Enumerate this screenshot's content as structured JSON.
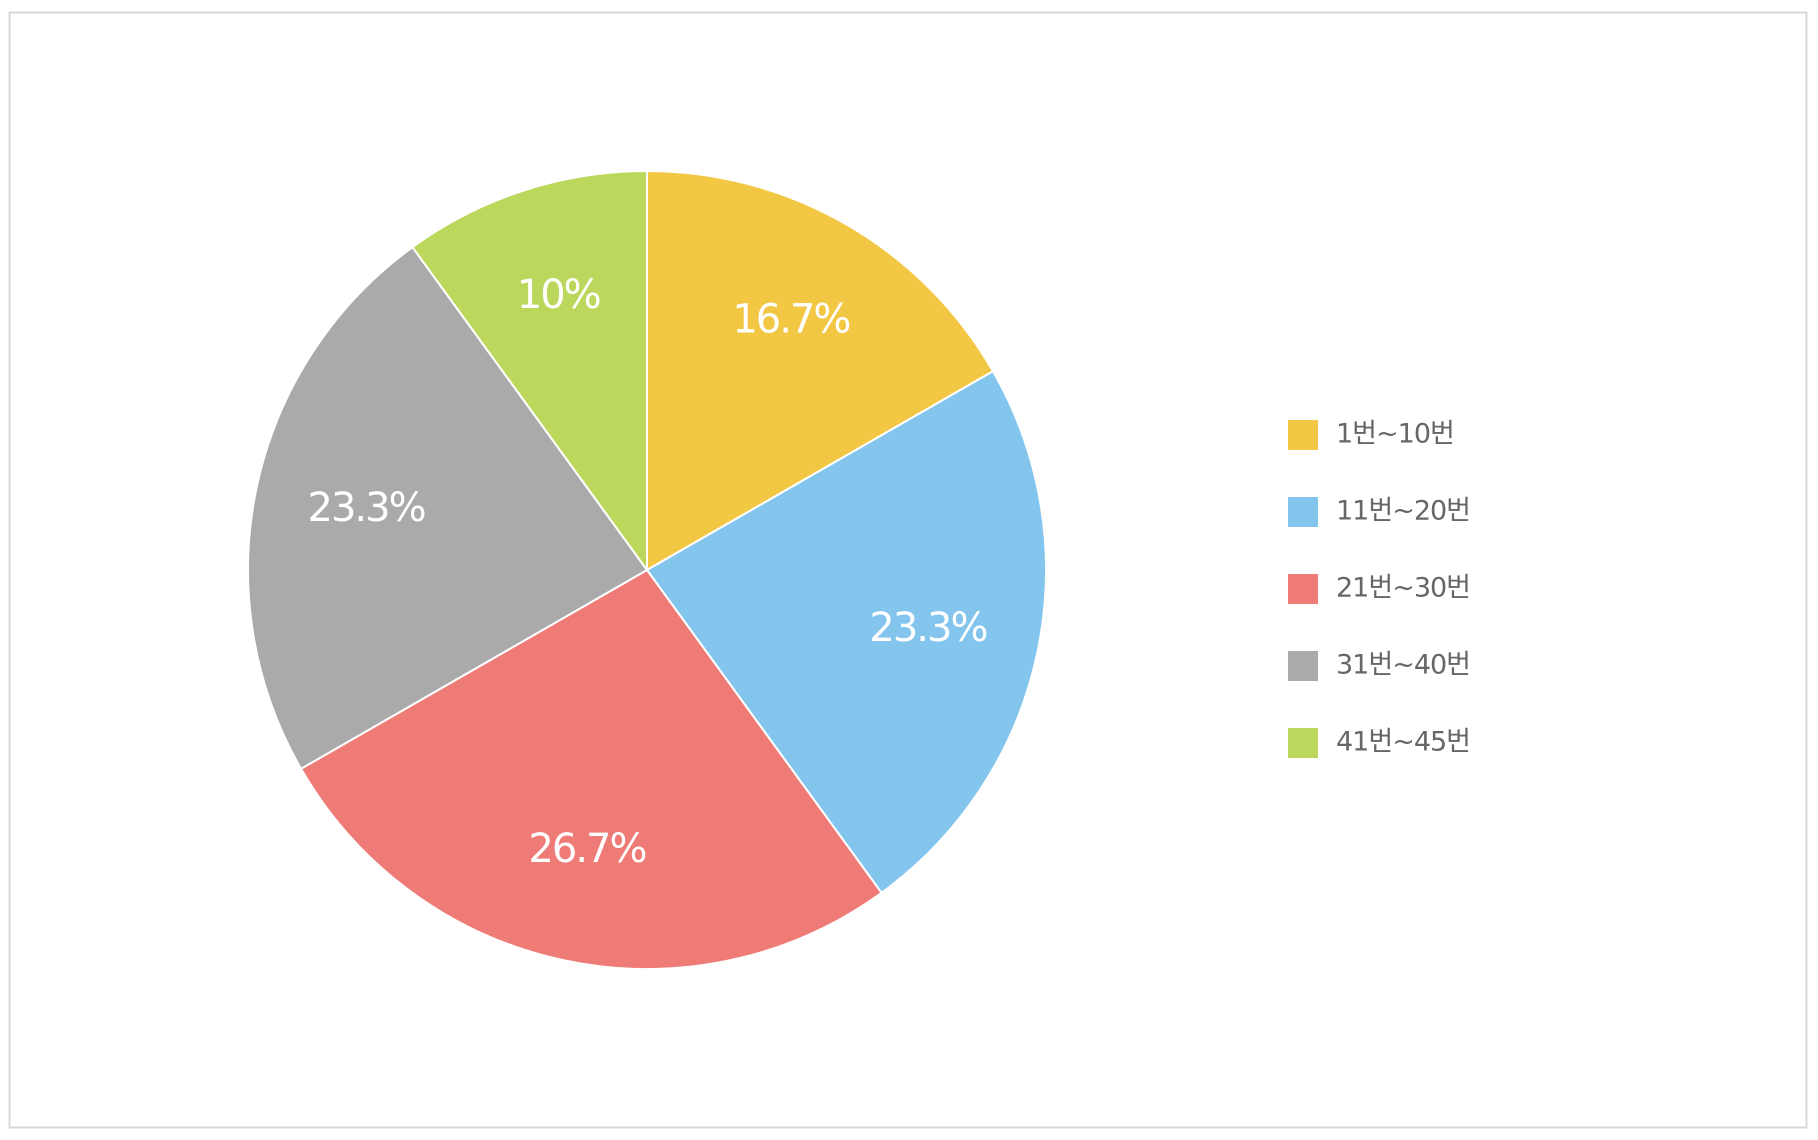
{
  "chart_data": {
    "type": "pie",
    "categories": [
      "1번~10번",
      "11번~20번",
      "21번~30번",
      "31번~40번",
      "41번~45번"
    ],
    "values": [
      16.7,
      23.3,
      26.7,
      23.3,
      10
    ],
    "value_labels": [
      "16.7%",
      "23.3%",
      "26.7%",
      "23.3%",
      "10%"
    ],
    "colors": [
      "#f2c744",
      "#84c5ee",
      "#ef7b77",
      "#aaaaaa",
      "#bbd85c"
    ],
    "legend": "right"
  }
}
